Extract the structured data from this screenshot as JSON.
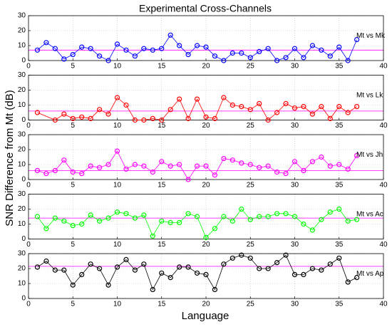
{
  "figure": {
    "title": "Experimental Cross-Channels",
    "xlabel": "Language",
    "ylabel": "SNR Difference from Mt (dB)"
  },
  "chart_data": [
    {
      "type": "line",
      "x": [
        1,
        2,
        3,
        4,
        5,
        6,
        7,
        8,
        9,
        10,
        11,
        12,
        13,
        14,
        15,
        16,
        17,
        18,
        19,
        20,
        21,
        22,
        23,
        24,
        25,
        26,
        27,
        28,
        29,
        30,
        31,
        32,
        33,
        34,
        35,
        36,
        37
      ],
      "series": [
        {
          "name": "Mt vs Mk",
          "color": "#0000ff",
          "values": [
            7,
            12,
            8,
            1,
            4,
            9,
            8,
            3,
            0,
            11,
            7,
            3,
            8,
            7,
            8,
            17,
            10,
            4,
            10,
            9,
            3,
            0,
            5,
            5,
            2,
            6,
            8,
            0,
            2,
            8,
            2,
            10,
            7,
            3,
            9,
            0,
            14
          ]
        }
      ],
      "reference_line": {
        "value": 7,
        "color": "#ff00ff"
      },
      "xlim": [
        0,
        40
      ],
      "xticks": [
        0,
        5,
        10,
        15,
        20,
        25,
        30,
        35,
        40
      ],
      "ylim": [
        0,
        30
      ],
      "yticks": [
        0,
        10,
        20,
        30
      ],
      "grid": true
    },
    {
      "type": "line",
      "x": [
        1,
        3,
        4,
        5,
        6,
        7,
        8,
        9,
        10,
        11,
        12,
        13,
        14,
        15,
        16,
        17,
        18,
        19,
        20,
        21,
        22,
        23,
        24,
        25,
        26,
        27,
        28,
        29,
        30,
        31,
        32,
        33,
        34,
        35,
        36,
        37
      ],
      "series": [
        {
          "name": "Mt vs Lk",
          "color": "#ff0000",
          "values": [
            5,
            0,
            4,
            1,
            2,
            1,
            7,
            4,
            15,
            10,
            0,
            0,
            1,
            0,
            7,
            14,
            1,
            14,
            2,
            1,
            15,
            10,
            9,
            7,
            11,
            0,
            5,
            11,
            8,
            9,
            4,
            9,
            1,
            9,
            5,
            9
          ]
        }
      ],
      "reference_line": {
        "value": 6,
        "color": "#ff00ff"
      },
      "xlim": [
        0,
        40
      ],
      "xticks": [
        0,
        5,
        10,
        15,
        20,
        25,
        30,
        35,
        40
      ],
      "ylim": [
        0,
        30
      ],
      "yticks": [
        0,
        10,
        20,
        30
      ],
      "grid": true
    },
    {
      "type": "line",
      "x": [
        1,
        2,
        3,
        4,
        5,
        6,
        7,
        8,
        9,
        10,
        11,
        12,
        13,
        14,
        15,
        16,
        17,
        18,
        19,
        20,
        21,
        22,
        23,
        24,
        25,
        26,
        27,
        28,
        29,
        30,
        31,
        32,
        33,
        34,
        35,
        36,
        37
      ],
      "series": [
        {
          "name": "Mt vs Jh",
          "color": "#ff00ff",
          "values": [
            6,
            4,
            6,
            13,
            5,
            4,
            9,
            8,
            10,
            19,
            7,
            10,
            9,
            5,
            12,
            9,
            10,
            0,
            9,
            9,
            3,
            14,
            13,
            11,
            10,
            8,
            9,
            5,
            4,
            12,
            6,
            12,
            15,
            9,
            10,
            7,
            16
          ]
        }
      ],
      "reference_line": {
        "value": 6,
        "color": "#ff00ff"
      },
      "xlim": [
        0,
        40
      ],
      "xticks": [
        0,
        5,
        10,
        15,
        20,
        25,
        30,
        35,
        40
      ],
      "ylim": [
        0,
        30
      ],
      "yticks": [
        0,
        10,
        20,
        30
      ],
      "grid": true
    },
    {
      "type": "line",
      "x": [
        1,
        2,
        3,
        4,
        5,
        6,
        7,
        8,
        9,
        10,
        11,
        12,
        13,
        14,
        15,
        16,
        17,
        18,
        19,
        20,
        21,
        22,
        23,
        24,
        25,
        26,
        27,
        28,
        29,
        30,
        31,
        32,
        33,
        34,
        35,
        36,
        37
      ],
      "series": [
        {
          "name": "Mt vs Ac",
          "color": "#00ff00",
          "values": [
            15,
            7,
            14,
            12,
            9,
            10,
            16,
            12,
            14,
            18,
            17,
            14,
            16,
            2,
            12,
            11,
            11,
            17,
            15,
            1,
            7,
            15,
            12,
            20,
            13,
            15,
            15,
            17,
            17,
            15,
            10,
            6,
            13,
            18,
            20,
            12,
            13
          ]
        }
      ],
      "reference_line": {
        "value": 14,
        "color": "#ff00ff"
      },
      "xlim": [
        0,
        40
      ],
      "xticks": [
        0,
        5,
        10,
        15,
        20,
        25,
        30,
        35,
        40
      ],
      "ylim": [
        0,
        30
      ],
      "yticks": [
        0,
        10,
        20,
        30
      ],
      "grid": true
    },
    {
      "type": "line",
      "x": [
        1,
        2,
        3,
        4,
        5,
        6,
        7,
        8,
        9,
        10,
        11,
        12,
        13,
        14,
        15,
        16,
        17,
        18,
        19,
        20,
        21,
        22,
        23,
        24,
        25,
        26,
        27,
        28,
        29,
        30,
        31,
        32,
        33,
        34,
        35,
        36,
        37
      ],
      "series": [
        {
          "name": "Mt vs Ap",
          "color": "#000000",
          "values": [
            21,
            25,
            19,
            19,
            9,
            16,
            23,
            20,
            9,
            21,
            26,
            19,
            23,
            6,
            17,
            14,
            21,
            21,
            17,
            16,
            6,
            23,
            27,
            29,
            27,
            20,
            20,
            24,
            29,
            16,
            16,
            20,
            19,
            23,
            27,
            11,
            14
          ]
        }
      ],
      "reference_line": {
        "value": 21.5,
        "color": "#ff00ff"
      },
      "xlim": [
        0,
        40
      ],
      "xticks": [
        0,
        5,
        10,
        15,
        20,
        25,
        30,
        35,
        40
      ],
      "ylim": [
        0,
        30
      ],
      "yticks": [
        0,
        10,
        20,
        30
      ],
      "grid": true
    }
  ]
}
